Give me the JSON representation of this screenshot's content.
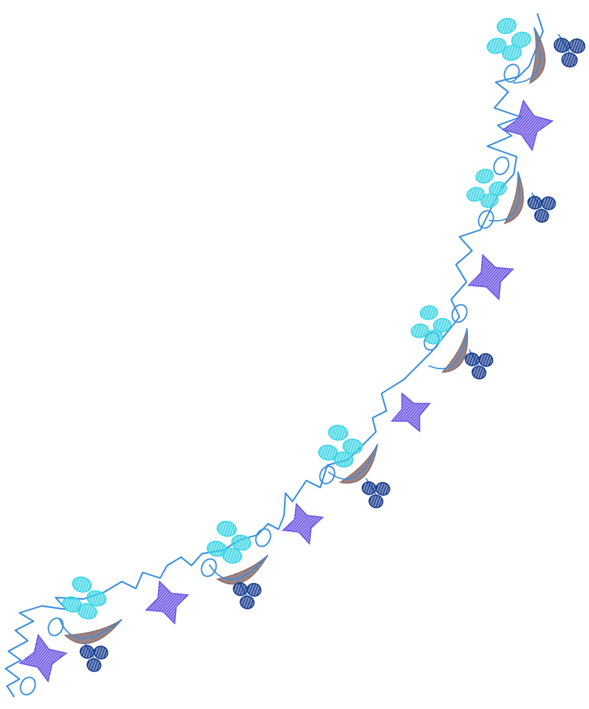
{
  "image": {
    "description_tokens": [
      "embroidery-border",
      "floral-garland"
    ],
    "colors": {
      "background": "#ffffff",
      "vine": "#3a8fe0",
      "petal_cyan": "#3cd6e6",
      "leaf_brown": "#8c7070",
      "star_violet": "#6b55e6",
      "berry_navy": "#163a8c"
    },
    "motifs": [
      "flower-cluster-icon",
      "star-icon",
      "berry-cluster-icon",
      "leaf-swirl-icon"
    ]
  }
}
